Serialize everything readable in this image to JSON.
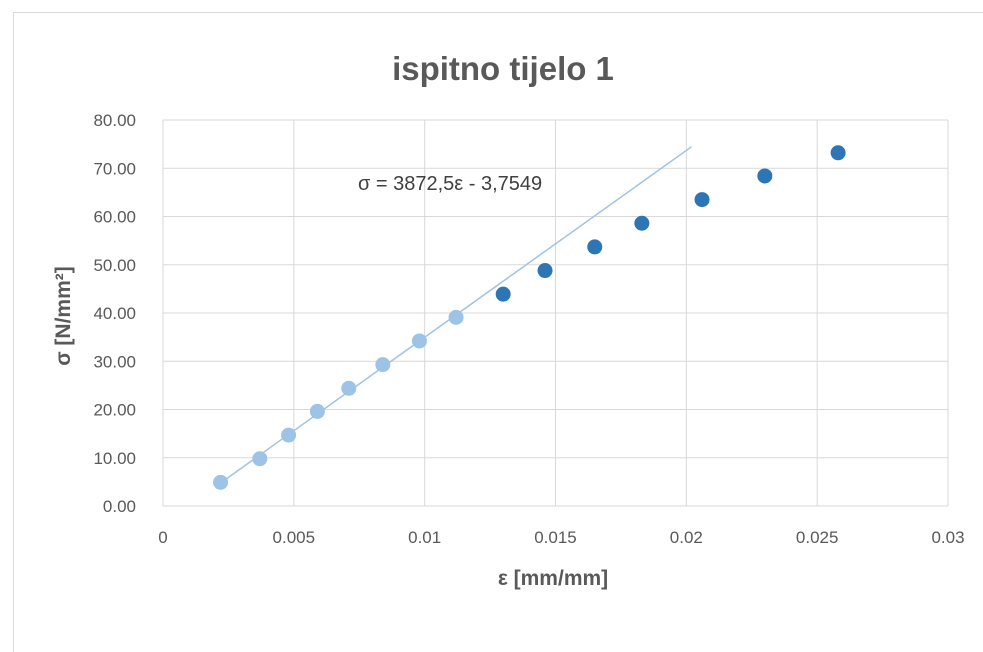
{
  "chart_data": {
    "type": "scatter",
    "title": "ispitno tijelo 1",
    "xlabel": "ε [mm/mm]",
    "ylabel": "σ [N/mm²]",
    "xlim": [
      0,
      0.03
    ],
    "ylim": [
      0,
      80
    ],
    "xticks": [
      "0",
      "0.005",
      "0.01",
      "0.015",
      "0.02",
      "0.025",
      "0.03"
    ],
    "yticks": [
      "0.00",
      "10.00",
      "20.00",
      "30.00",
      "40.00",
      "50.00",
      "60.00",
      "70.00",
      "80.00"
    ],
    "grid": true,
    "series": [
      {
        "color": "#9dc3e6",
        "x": [
          0.0022,
          0.0037,
          0.0048,
          0.0059,
          0.0071,
          0.0084,
          0.0098,
          0.0112
        ],
        "y": [
          4.9,
          9.8,
          14.7,
          19.6,
          24.4,
          29.3,
          34.2,
          39.1
        ]
      },
      {
        "color": "#2e75b6",
        "x": [
          0.013,
          0.0146,
          0.0165,
          0.0183,
          0.0206,
          0.023,
          0.0258
        ],
        "y": [
          43.9,
          48.8,
          53.7,
          58.6,
          63.5,
          68.4,
          73.2
        ]
      }
    ],
    "trendline": {
      "label": "σ = 3872,5ε - 3,7549",
      "slope": 3872.5,
      "intercept": -3.7549,
      "x_range": [
        0.0022,
        0.0202
      ],
      "color": "#9dc3e6"
    }
  }
}
